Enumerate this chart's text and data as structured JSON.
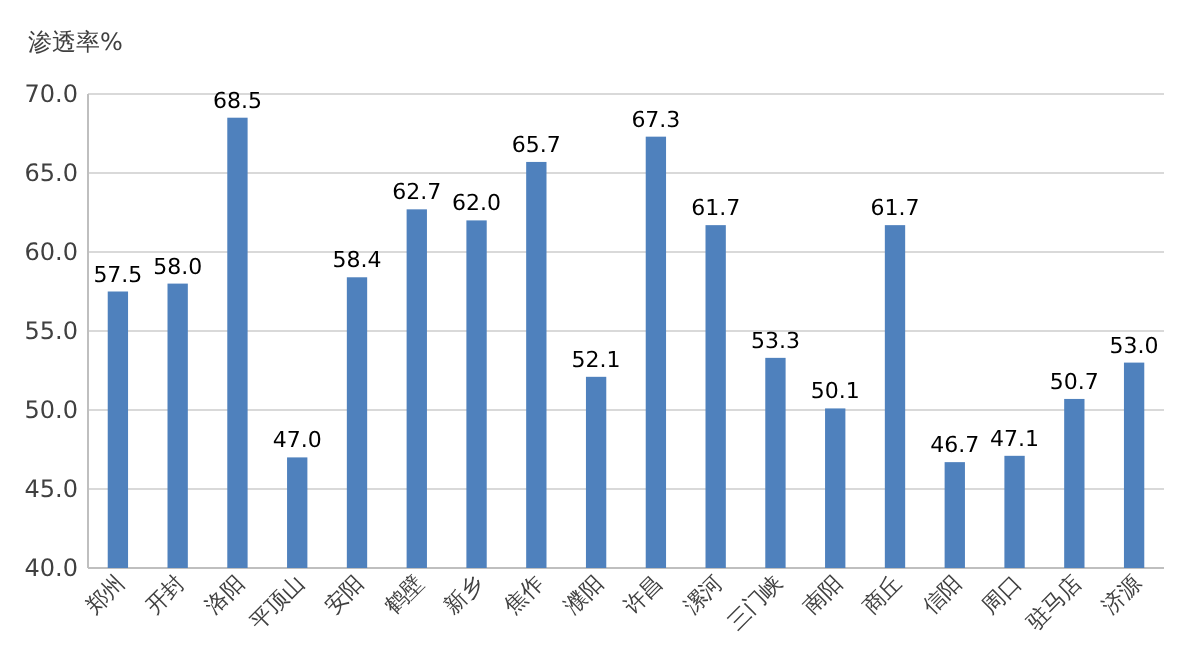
{
  "chart_data": {
    "type": "bar",
    "ylabel": "渗透率%",
    "categories": [
      "郑州",
      "开封",
      "洛阳",
      "平顶山",
      "安阳",
      "鹤壁",
      "新乡",
      "焦作",
      "濮阳",
      "许昌",
      "漯河",
      "三门峡",
      "南阳",
      "商丘",
      "信阳",
      "周口",
      "驻马店",
      "济源"
    ],
    "values": [
      57.5,
      58.0,
      68.5,
      47.0,
      58.4,
      62.7,
      62.0,
      65.7,
      52.1,
      67.3,
      61.7,
      53.3,
      50.1,
      61.7,
      46.7,
      47.1,
      50.7,
      53.0
    ],
    "value_labels": [
      "57.5",
      "58.0",
      "68.5",
      "47.0",
      "58.4",
      "62.7",
      "62.0",
      "65.7",
      "52.1",
      "67.3",
      "61.7",
      "53.3",
      "50.1",
      "61.7",
      "46.7",
      "47.1",
      "50.7",
      "53.0"
    ],
    "color": "#4f81bd",
    "ylim": [
      40,
      70
    ],
    "yticks": [
      {
        "value": 40,
        "label": "40.0"
      },
      {
        "value": 45,
        "label": "45.0"
      },
      {
        "value": 50,
        "label": "50.0"
      },
      {
        "value": 55,
        "label": "55.0"
      },
      {
        "value": 60,
        "label": "60.0"
      },
      {
        "value": 65,
        "label": "65.0"
      },
      {
        "value": 70,
        "label": "70.0"
      }
    ],
    "grid": "y"
  }
}
